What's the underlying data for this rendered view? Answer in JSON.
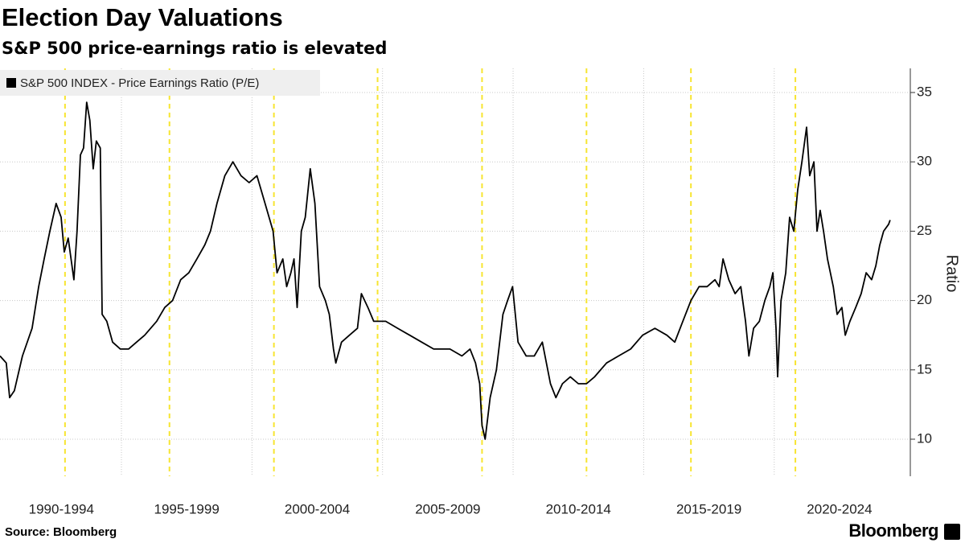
{
  "chart_data": {
    "type": "line",
    "title": "Election Day Valuations",
    "subtitle": "S&P 500 price-earnings ratio is elevated",
    "y_axis_label": "Ratio",
    "source": "Source: Bloomberg",
    "logo": "Bloomberg",
    "legend": "top-left",
    "grid": true,
    "xlim": [
      1990.35,
      2025.15
    ],
    "ylim": [
      7.33,
      36.74
    ],
    "yticks": [
      10,
      15,
      20,
      25,
      30,
      35
    ],
    "xticks": [
      {
        "value": 1992.7,
        "label": "1990-1994"
      },
      {
        "value": 1997.5,
        "label": "1995-1999"
      },
      {
        "value": 2002.5,
        "label": "2000-2004"
      },
      {
        "value": 2007.5,
        "label": "2005-2009"
      },
      {
        "value": 2012.5,
        "label": "2010-2014"
      },
      {
        "value": 2017.5,
        "label": "2015-2019"
      },
      {
        "value": 2022.5,
        "label": "2020-2024"
      }
    ],
    "xgrid": [
      1995,
      2000,
      2005,
      2010,
      2015,
      2020
    ],
    "vlines": {
      "color": "#f7e531",
      "x": [
        1992.84,
        1996.84,
        2000.84,
        2004.81,
        2008.81,
        2012.81,
        2016.81,
        2020.81
      ]
    },
    "x": [
      1990.35,
      1990.59,
      1990.72,
      1990.9,
      1991.21,
      1991.58,
      1991.83,
      1992.04,
      1992.26,
      1992.5,
      1992.69,
      1992.81,
      1992.96,
      1993.18,
      1993.3,
      1993.43,
      1993.55,
      1993.67,
      1993.79,
      1993.92,
      1994.04,
      1994.19,
      1994.26,
      1994.44,
      1994.66,
      1994.96,
      1995.27,
      1995.58,
      1995.89,
      1996.35,
      1996.66,
      1996.96,
      1997.27,
      1997.58,
      1997.89,
      1998.19,
      1998.41,
      1998.66,
      1998.96,
      1999.27,
      1999.58,
      1999.89,
      2000.19,
      2000.5,
      2000.81,
      2000.96,
      2001.18,
      2001.33,
      2001.49,
      2001.61,
      2001.73,
      2001.89,
      2002.04,
      2002.23,
      2002.41,
      2002.59,
      2002.81,
      2002.96,
      2003.12,
      2003.21,
      2003.43,
      2003.73,
      2004.04,
      2004.19,
      2004.44,
      2004.66,
      2005.12,
      2005.58,
      2006.04,
      2006.5,
      2006.96,
      2007.58,
      2008.04,
      2008.35,
      2008.56,
      2008.72,
      2008.81,
      2008.93,
      2009.12,
      2009.36,
      2009.61,
      2009.79,
      2009.98,
      2010.19,
      2010.5,
      2010.81,
      2011.12,
      2011.43,
      2011.64,
      2011.89,
      2012.19,
      2012.5,
      2012.81,
      2013.12,
      2013.58,
      2014.04,
      2014.5,
      2014.96,
      2015.43,
      2015.89,
      2016.19,
      2016.5,
      2016.81,
      2017.12,
      2017.43,
      2017.73,
      2017.89,
      2018.04,
      2018.26,
      2018.5,
      2018.72,
      2018.9,
      2019.03,
      2019.21,
      2019.43,
      2019.64,
      2019.83,
      2019.95,
      2020.07,
      2020.13,
      2020.26,
      2020.44,
      2020.59,
      2020.75,
      2020.9,
      2021.06,
      2021.24,
      2021.36,
      2021.52,
      2021.64,
      2021.76,
      2021.89,
      2022.04,
      2022.26,
      2022.41,
      2022.59,
      2022.72,
      2022.9,
      2023.12,
      2023.33,
      2023.52,
      2023.73,
      2023.89,
      2024.04,
      2024.19,
      2024.38,
      2024.44
    ],
    "series": [
      {
        "name": "S&P 500 INDEX - Price Earnings Ratio (P/E)",
        "color": "#000000",
        "values": [
          16,
          15.5,
          13,
          13.5,
          16,
          18,
          21,
          23,
          25,
          27,
          26,
          23.5,
          24.5,
          21.5,
          25,
          30.5,
          31,
          34.3,
          33,
          29.5,
          31.5,
          31,
          19,
          18.5,
          17,
          16.5,
          16.5,
          17,
          17.5,
          18.5,
          19.5,
          20,
          21.5,
          22,
          23,
          24,
          25,
          27,
          29,
          30,
          29,
          28.5,
          29,
          27,
          25,
          22,
          23,
          21,
          22,
          23,
          19.5,
          25,
          26,
          29.5,
          27,
          21,
          20,
          19,
          16.5,
          15.5,
          17,
          17.5,
          18,
          20.5,
          19.5,
          18.5,
          18.5,
          18,
          17.5,
          17,
          16.5,
          16.5,
          16,
          16.5,
          15.5,
          14,
          11,
          10,
          13,
          15,
          19,
          20,
          21,
          17,
          16,
          16,
          17,
          14,
          13,
          14,
          14.5,
          14,
          14,
          14.5,
          15.5,
          16,
          16.5,
          17.5,
          18,
          17.5,
          17,
          18.5,
          20,
          21,
          21,
          21.5,
          21,
          23,
          21.5,
          20.5,
          21,
          18.5,
          16,
          18,
          18.5,
          20,
          21,
          22,
          18,
          14.5,
          20,
          22,
          26,
          25,
          28,
          30,
          32.5,
          29,
          30,
          25,
          26.5,
          25,
          23,
          21,
          19,
          19.5,
          17.5,
          18.5,
          19.5,
          20.5,
          22,
          21.5,
          22.5,
          24,
          25,
          25.5,
          25.8
        ]
      }
    ]
  }
}
